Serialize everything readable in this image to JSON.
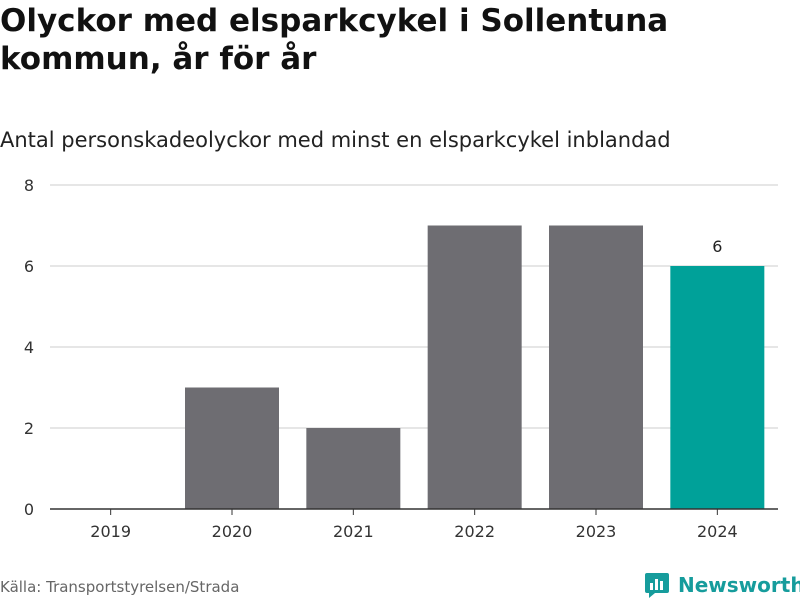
{
  "header": {
    "title": "Olyckor med elsparkcykel i Sollentuna kommun, år för år",
    "subtitle": "Antal personskadeolyckor med minst en elsparkcykel inblandad"
  },
  "footer": {
    "source": "Källa: Transportstyrelsen/Strada",
    "brand": "Newsworthy"
  },
  "colors": {
    "bar": "#6e6d72",
    "highlight": "#00a199",
    "grid": "#dddddd",
    "axis": "#333333",
    "brand": "#169c9c"
  },
  "chart_data": {
    "type": "bar",
    "title": "Olyckor med elsparkcykel i Sollentuna kommun, år för år",
    "subtitle": "Antal personskadeolyckor med minst en elsparkcykel inblandad",
    "categories": [
      "2019",
      "2020",
      "2021",
      "2022",
      "2023",
      "2024"
    ],
    "values": [
      0,
      3,
      2,
      7,
      7,
      6
    ],
    "highlight_index": 5,
    "data_labels": [
      {
        "index": 5,
        "text": "6"
      }
    ],
    "yticks": [
      "0",
      "2",
      "4",
      "6",
      "8"
    ],
    "ylim": [
      0,
      8
    ],
    "grid": true,
    "legend": "none"
  }
}
